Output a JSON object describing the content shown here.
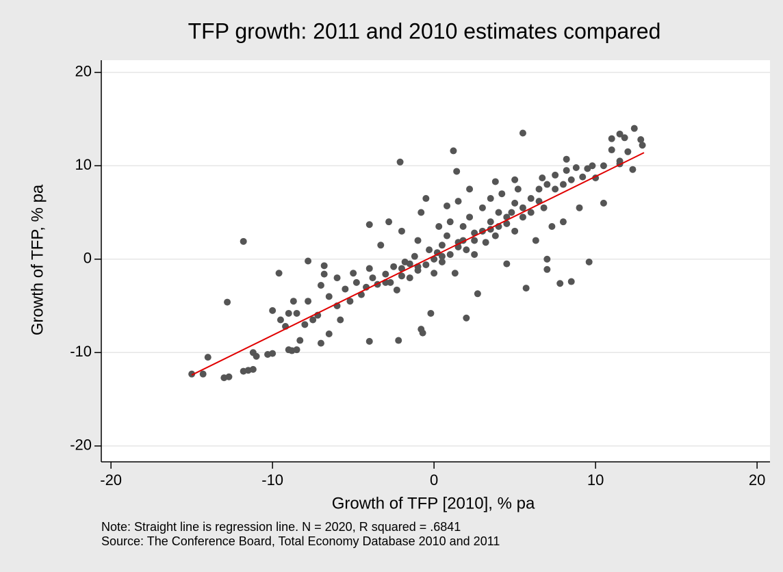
{
  "chart_data": {
    "type": "scatter",
    "title": "TFP growth: 2011 and 2010 estimates compared",
    "xlabel": "Growth of TFP [2010], % pa",
    "ylabel": "Growth of TFP, % pa",
    "notes": [
      "Note:  Straight line is regression line. N = 2020, R squared = .6841",
      "Source:  The Conference Board, Total Economy Database 2010 and 2011"
    ],
    "xlim": [
      -20.6,
      20.8
    ],
    "ylim": [
      -21.7,
      21.3
    ],
    "xticks": [
      -20,
      -10,
      0,
      10,
      20
    ],
    "yticks": [
      -20,
      -10,
      0,
      10,
      20
    ],
    "grid": true,
    "series": [
      {
        "color": "#555555",
        "x": [
          -15,
          -14.3,
          -14,
          -13,
          -12.7,
          -12.8,
          -11.8,
          -11.8,
          -11.5,
          -11.2,
          -11.2,
          -11,
          -10.3,
          -10,
          -10,
          -9.6,
          -9.5,
          -9.2,
          -9,
          -8.8,
          -8.5,
          -9,
          -8.7,
          -8.5,
          -8.3,
          -8,
          -7.8,
          -7.8,
          -7.5,
          -7.2,
          -7,
          -7,
          -6.8,
          -6.8,
          -6.5,
          -6.5,
          -6,
          -6,
          -5.8,
          -5.5,
          -5.2,
          -5,
          -4.8,
          -4.5,
          -4.2,
          -4,
          -4,
          -4,
          -3.8,
          -3.5,
          -3.3,
          -3,
          -2.8,
          -2.7,
          -2.5,
          -2.3,
          -2.2,
          -2,
          -2,
          -1.8,
          -1.5,
          -1.5,
          -1.2,
          -1,
          -1,
          -0.8,
          -0.7,
          -0.5,
          -0.5,
          -0.3,
          -0.2,
          0,
          0,
          0.2,
          0.3,
          0.5,
          0.5,
          0.8,
          1,
          1,
          1.2,
          1.3,
          1.5,
          1.5,
          1.8,
          1.8,
          2,
          2,
          2.2,
          2.5,
          2.5,
          2.7,
          3,
          3,
          3.2,
          3.5,
          3.5,
          3.8,
          4,
          4,
          4.2,
          4.5,
          4.5,
          4.8,
          5,
          5,
          5.2,
          5.5,
          5.5,
          5.7,
          6,
          6,
          6.3,
          6.5,
          6.8,
          7,
          7,
          7,
          7.3,
          7.5,
          7.8,
          8,
          8,
          8.2,
          8.2,
          8.5,
          8.5,
          8.8,
          9,
          9.2,
          9.5,
          9.6,
          10,
          10.5,
          11,
          11,
          11.5,
          11.8,
          11.5,
          12,
          12.4,
          12.8,
          12.9,
          12.3,
          -2.1,
          1.4,
          -0.8,
          0.8,
          2.2,
          3.8,
          5,
          6.7,
          7.5,
          9.8,
          10.5,
          11.5,
          -3,
          -2,
          -1,
          0.5,
          1.5,
          2.5,
          3.5,
          4.5,
          5.5,
          6.5
        ],
        "values": [
          -12.3,
          -12.3,
          -10.5,
          -12.7,
          -12.6,
          -4.6,
          1.9,
          -12,
          -11.9,
          -11.8,
          -10,
          -10.4,
          -10.2,
          -10.1,
          -5.5,
          -1.5,
          -6.5,
          -7.2,
          -9.7,
          -9.8,
          -9.7,
          -5.8,
          -4.5,
          -5.8,
          -8.7,
          -7,
          -4.5,
          -0.2,
          -6.5,
          -6,
          -9,
          -2.8,
          -1.6,
          -0.7,
          -8,
          -4,
          -5,
          -2,
          -6.5,
          -3.2,
          -4.5,
          -1.5,
          -2.5,
          -3.8,
          -3,
          -8.8,
          3.7,
          -1,
          -2,
          -2.7,
          1.5,
          -1.6,
          4,
          -2.5,
          -0.8,
          -3.3,
          -8.7,
          -1,
          3,
          -0.3,
          -2,
          -0.5,
          0.3,
          -1.2,
          2,
          -7.5,
          -7.9,
          -0.6,
          6.5,
          1,
          -5.8,
          0,
          -1.5,
          0.7,
          3.5,
          -0.3,
          1.5,
          2.5,
          0.5,
          4,
          11.6,
          -1.5,
          1.3,
          6.2,
          2,
          3.5,
          -6.3,
          1,
          4.5,
          2.8,
          0.5,
          -3.7,
          3,
          5.5,
          1.8,
          4,
          6.5,
          2.5,
          3.5,
          5,
          7,
          3.8,
          -0.5,
          5,
          6,
          3,
          7.5,
          13.5,
          4.5,
          -3.1,
          6.5,
          5,
          2,
          7.5,
          5.5,
          8,
          0,
          -1.1,
          3.5,
          7.5,
          -2.6,
          8,
          4,
          10.7,
          9.5,
          -2.4,
          8.5,
          9.8,
          5.5,
          8.8,
          9.7,
          -0.3,
          8.7,
          6,
          12.9,
          11.7,
          10.2,
          13,
          13.4,
          11.5,
          14,
          12.8,
          12.2,
          9.6,
          10.4,
          9.4,
          5,
          5.7,
          7.5,
          8.3,
          8.5,
          8.7,
          9,
          10,
          10,
          10.5,
          -2.5,
          -1.8,
          -0.8,
          0.3,
          1.8,
          2,
          3.2,
          4.5,
          5.5,
          6.2
        ]
      }
    ],
    "regression": {
      "color": "#e00000",
      "x": [
        -15,
        13
      ],
      "values": [
        -12.4,
        11.4
      ]
    }
  }
}
